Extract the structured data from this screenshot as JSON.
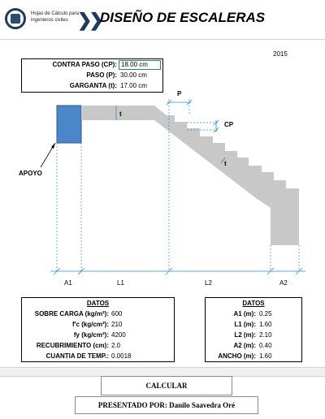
{
  "header": {
    "logo_text": "Hojas de Cálculo para ingenieros civiles",
    "title": "DISEÑO DE ESCALERAS"
  },
  "year": "2015",
  "params": {
    "contra_paso": {
      "label": "CONTRA PASO (CP):",
      "value": "18.00 cm"
    },
    "paso": {
      "label": "PASO (P):",
      "value": "30.00 cm"
    },
    "garganta": {
      "label": "GARGANTA (t):",
      "value": "17.00 cm"
    }
  },
  "diagram": {
    "labels": {
      "t": "t",
      "p": "P",
      "cp": "CP",
      "t2": "t",
      "apoyo": "APOYO"
    },
    "dims": {
      "a1": "A1",
      "l1": "L1",
      "l2": "L2",
      "a2": "A2"
    },
    "colors": {
      "support": "#4a86c8",
      "slab": "#c8c8c8",
      "dim": "#2a8fbf"
    }
  },
  "datos_left": {
    "title": "DATOS",
    "rows": [
      {
        "label": "SOBRE CARGA (kg/m²):",
        "value": "600"
      },
      {
        "label": "f'c (kg/cm²):",
        "value": "210"
      },
      {
        "label": "fy (kg/cm²):",
        "value": "4200"
      },
      {
        "label": "RECUBRIMIENTO (cm):",
        "value": "2.0"
      },
      {
        "label": "CUANTIA DE TEMP.:",
        "value": "0.0018"
      }
    ]
  },
  "datos_right": {
    "title": "DATOS",
    "rows": [
      {
        "label": "A1 (m):",
        "value": "0.25"
      },
      {
        "label": "L1 (m):",
        "value": "1.60"
      },
      {
        "label": "L2 (m):",
        "value": "2.10"
      },
      {
        "label": "A2 (m):",
        "value": "0.40"
      },
      {
        "label": "ANCHO (m):",
        "value": "1.60"
      }
    ]
  },
  "buttons": {
    "calculate": "CALCULAR",
    "author": "PRESENTADO POR: Danilo Saavedra Oré"
  }
}
